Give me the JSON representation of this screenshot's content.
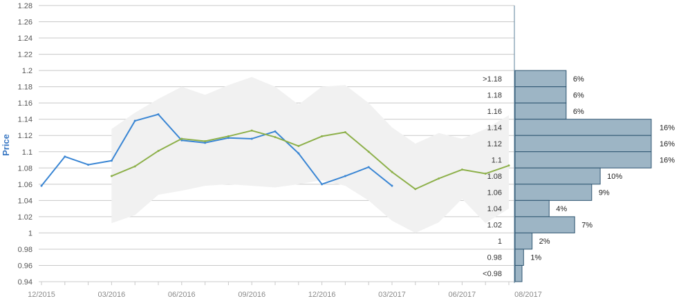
{
  "chart_data": [
    {
      "type": "line",
      "ylabel": "Price",
      "xlabel": "",
      "title": "",
      "ylim": [
        0.94,
        1.28
      ],
      "y_ticks": [
        "1.28",
        "1.26",
        "1.24",
        "1.22",
        "1.2",
        "1.18",
        "1.16",
        "1.14",
        "1.12",
        "1.1",
        "1.08",
        "1.06",
        "1.04",
        "1.02",
        "1",
        "0.98",
        "0.96",
        "0.94"
      ],
      "x_tick_labels": [
        "12/2015",
        "03/2016",
        "06/2016",
        "09/2016",
        "12/2016",
        "03/2017",
        "06/2017",
        "08/2017"
      ],
      "grid": true,
      "series": [
        {
          "color": "#3a86d4",
          "x": [
            "12/2015",
            "01/2016",
            "02/2016",
            "03/2016",
            "04/2016",
            "05/2016",
            "06/2016",
            "07/2016",
            "08/2016",
            "09/2016",
            "10/2016",
            "11/2016",
            "12/2016",
            "01/2017",
            "02/2017",
            "03/2017"
          ],
          "values": [
            1.058,
            1.094,
            1.084,
            1.089,
            1.138,
            1.146,
            1.114,
            1.111,
            1.117,
            1.116,
            1.125,
            1.098,
            1.06,
            1.07,
            1.081,
            1.058
          ]
        },
        {
          "color": "#8db04a",
          "x": [
            "03/2016",
            "04/2016",
            "05/2016",
            "06/2016",
            "07/2016",
            "08/2016",
            "09/2016",
            "10/2016",
            "11/2016",
            "12/2016",
            "01/2017",
            "02/2017",
            "03/2017",
            "04/2017",
            "05/2017",
            "06/2017",
            "07/2017",
            "08/2017"
          ],
          "values": [
            1.07,
            1.082,
            1.101,
            1.116,
            1.113,
            1.119,
            1.126,
            1.118,
            1.107,
            1.119,
            1.124,
            1.1,
            1.075,
            1.054,
            1.067,
            1.078,
            1.073,
            1.083
          ]
        }
      ],
      "band": {
        "color": "#f1f1f1",
        "x": [
          "03/2016",
          "04/2016",
          "05/2016",
          "06/2016",
          "07/2016",
          "08/2016",
          "09/2016",
          "10/2016",
          "11/2016",
          "12/2016",
          "01/2017",
          "02/2017",
          "03/2017",
          "04/2017",
          "05/2017",
          "06/2017",
          "07/2017",
          "08/2017"
        ],
        "upper": [
          1.128,
          1.148,
          1.165,
          1.18,
          1.17,
          1.182,
          1.192,
          1.18,
          1.158,
          1.18,
          1.182,
          1.16,
          1.13,
          1.11,
          1.123,
          1.116,
          1.128,
          1.145
        ],
        "lower": [
          1.012,
          1.022,
          1.047,
          1.052,
          1.058,
          1.06,
          1.058,
          1.056,
          1.06,
          1.065,
          1.058,
          1.04,
          1.015,
          1.0,
          1.013,
          1.042,
          1.012,
          1.03
        ]
      }
    },
    {
      "type": "bar",
      "orientation": "horizontal",
      "bar_color": "#9db5c5",
      "categories": [
        ">1.18",
        "1.18",
        "1.16",
        "1.14",
        "1.12",
        "1.1",
        "1.08",
        "1.06",
        "1.04",
        "1.02",
        "1",
        "0.98",
        "<0.98"
      ],
      "values": [
        6,
        6,
        6,
        16,
        16,
        16,
        10,
        9,
        4,
        7,
        2,
        1,
        0
      ],
      "value_labels": [
        "6%",
        "6%",
        "6%",
        "16%",
        "16%",
        "16%",
        "10%",
        "9%",
        "4%",
        "7%",
        "2%",
        "1%",
        ""
      ]
    }
  ]
}
